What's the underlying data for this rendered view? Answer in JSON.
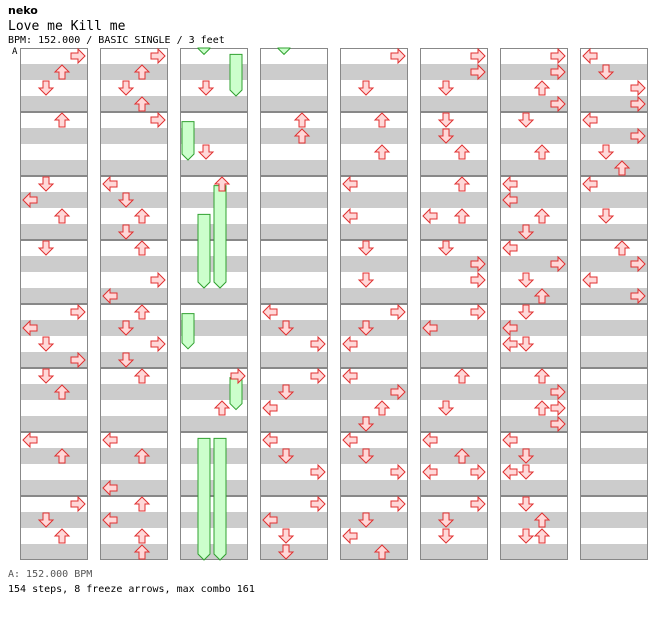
{
  "header": {
    "artist": "neko",
    "title": "Love me Kill me",
    "meta": "BPM: 152.000 / BASIC SINGLE / 3 feet",
    "bpm_marker": "A"
  },
  "footer": {
    "bpm_legend": "A: 152.000 BPM",
    "stats": "154 steps, 8 freeze arrows, max combo 161"
  },
  "colors": {
    "arrow_fill": "#ffd8d8",
    "arrow_stroke": "#e03030",
    "freeze_fill": "#ccffcc",
    "freeze_stroke": "#30a030",
    "stripe": "#cccccc",
    "border": "#888888"
  },
  "chart": {
    "columns": 8,
    "rows_per_column": 8,
    "slots_per_measure": 4,
    "lanes": [
      "left",
      "down",
      "up",
      "right"
    ],
    "measures": [
      [
        {
          "s": 0,
          "l": "right"
        },
        {
          "s": 1,
          "l": "up"
        },
        {
          "s": 2,
          "l": "down"
        }
      ],
      [
        {
          "s": 0,
          "l": "up"
        }
      ],
      [
        {
          "s": 0,
          "l": "down"
        },
        {
          "s": 1,
          "l": "left"
        },
        {
          "s": 2,
          "l": "up"
        }
      ],
      [
        {
          "s": 0,
          "l": "down"
        }
      ],
      [
        {
          "s": 0,
          "l": "right"
        },
        {
          "s": 1,
          "l": "left"
        },
        {
          "s": 2,
          "l": "down"
        },
        {
          "s": 3,
          "l": "right"
        }
      ],
      [
        {
          "s": 0,
          "l": "down"
        },
        {
          "s": 1,
          "l": "up"
        }
      ],
      [
        {
          "s": 0,
          "l": "left"
        },
        {
          "s": 1,
          "l": "up"
        }
      ],
      [
        {
          "s": 0,
          "l": "right"
        },
        {
          "s": 1,
          "l": "down"
        },
        {
          "s": 2,
          "l": "up"
        }
      ],
      [
        {
          "s": 0,
          "l": "right"
        },
        {
          "s": 1,
          "l": "up"
        },
        {
          "s": 2,
          "l": "down"
        },
        {
          "s": 3,
          "l": "up"
        }
      ],
      [
        {
          "s": 0,
          "l": "right"
        }
      ],
      [
        {
          "s": 0,
          "l": "left"
        },
        {
          "s": 1,
          "l": "down"
        },
        {
          "s": 2,
          "l": "up"
        },
        {
          "s": 3,
          "l": "down"
        }
      ],
      [
        {
          "s": 0,
          "l": "up"
        },
        {
          "s": 2,
          "l": "right"
        },
        {
          "s": 3,
          "l": "left"
        }
      ],
      [
        {
          "s": 0,
          "l": "up"
        },
        {
          "s": 1,
          "l": "down"
        },
        {
          "s": 2,
          "l": "right"
        },
        {
          "s": 3,
          "l": "down"
        }
      ],
      [
        {
          "s": 0,
          "l": "up"
        }
      ],
      [
        {
          "s": 0,
          "l": "left"
        },
        {
          "s": 1,
          "l": "up"
        },
        {
          "s": 3,
          "l": "left"
        }
      ],
      [
        {
          "s": 0,
          "l": "up"
        },
        {
          "s": 1,
          "l": "left"
        },
        {
          "s": 2,
          "l": "up"
        },
        {
          "s": 3,
          "l": "up"
        }
      ],
      [
        {
          "s": 2,
          "l": "down"
        }
      ],
      [
        {
          "s": 2,
          "l": "down"
        }
      ],
      [
        {
          "s": 0,
          "l": "up"
        }
      ],
      [],
      [],
      [
        {
          "s": 0,
          "l": "right"
        },
        {
          "s": 2,
          "l": "up"
        }
      ],
      [],
      [],
      [],
      [
        {
          "s": 0,
          "l": "up"
        },
        {
          "s": 1,
          "l": "up"
        }
      ],
      [],
      [],
      [
        {
          "s": 0,
          "l": "left"
        },
        {
          "s": 1,
          "l": "down"
        },
        {
          "s": 2,
          "l": "right"
        }
      ],
      [
        {
          "s": 0,
          "l": "right"
        },
        {
          "s": 1,
          "l": "down"
        },
        {
          "s": 2,
          "l": "left"
        }
      ],
      [
        {
          "s": 0,
          "l": "left"
        },
        {
          "s": 1,
          "l": "down"
        },
        {
          "s": 2,
          "l": "right"
        }
      ],
      [
        {
          "s": 0,
          "l": "right"
        },
        {
          "s": 1,
          "l": "left"
        },
        {
          "s": 2,
          "l": "down"
        },
        {
          "s": 3,
          "l": "down"
        }
      ],
      [
        {
          "s": 0,
          "l": "right"
        },
        {
          "s": 2,
          "l": "down"
        }
      ],
      [
        {
          "s": 0,
          "l": "up"
        },
        {
          "s": 2,
          "l": "up"
        }
      ],
      [
        {
          "s": 0,
          "l": "left"
        },
        {
          "s": 2,
          "l": "left"
        }
      ],
      [
        {
          "s": 0,
          "l": "down"
        },
        {
          "s": 2,
          "l": "down"
        }
      ],
      [
        {
          "s": 0,
          "l": "right"
        },
        {
          "s": 1,
          "l": "down"
        },
        {
          "s": 2,
          "l": "left"
        }
      ],
      [
        {
          "s": 0,
          "l": "left"
        },
        {
          "s": 1,
          "l": "right"
        },
        {
          "s": 2,
          "l": "up"
        },
        {
          "s": 3,
          "l": "down"
        }
      ],
      [
        {
          "s": 0,
          "l": "left"
        },
        {
          "s": 1,
          "l": "down"
        },
        {
          "s": 2,
          "l": "right"
        }
      ],
      [
        {
          "s": 0,
          "l": "right"
        },
        {
          "s": 1,
          "l": "down"
        },
        {
          "s": 2,
          "l": "left"
        },
        {
          "s": 3,
          "l": "up"
        }
      ],
      [
        {
          "s": 0,
          "l": "right"
        },
        {
          "s": 1,
          "l": "right"
        },
        {
          "s": 2,
          "l": "down"
        }
      ],
      [
        {
          "s": 0,
          "l": "down"
        },
        {
          "s": 1,
          "l": "down"
        },
        {
          "s": 2,
          "l": "up"
        }
      ],
      [
        {
          "s": 0,
          "l": "up"
        },
        {
          "s": 2,
          "l": "left"
        },
        {
          "s": 2,
          "l": "up"
        }
      ],
      [
        {
          "s": 0,
          "l": "down"
        },
        {
          "s": 1,
          "l": "right"
        },
        {
          "s": 2,
          "l": "right"
        }
      ],
      [
        {
          "s": 0,
          "l": "right"
        },
        {
          "s": 1,
          "l": "left"
        }
      ],
      [
        {
          "s": 0,
          "l": "up"
        },
        {
          "s": 2,
          "l": "down"
        }
      ],
      [
        {
          "s": 0,
          "l": "left"
        },
        {
          "s": 1,
          "l": "up"
        },
        {
          "s": 2,
          "l": "left"
        },
        {
          "s": 2,
          "l": "right"
        }
      ],
      [
        {
          "s": 0,
          "l": "right"
        },
        {
          "s": 1,
          "l": "down"
        },
        {
          "s": 2,
          "l": "down"
        }
      ],
      [
        {
          "s": 0,
          "l": "right"
        },
        {
          "s": 1,
          "l": "right"
        },
        {
          "s": 2,
          "l": "up"
        },
        {
          "s": 3,
          "l": "right"
        }
      ],
      [
        {
          "s": 0,
          "l": "down"
        },
        {
          "s": 2,
          "l": "up"
        }
      ],
      [
        {
          "s": 0,
          "l": "left"
        },
        {
          "s": 1,
          "l": "left"
        },
        {
          "s": 2,
          "l": "up"
        },
        {
          "s": 3,
          "l": "down"
        }
      ],
      [
        {
          "s": 0,
          "l": "left"
        },
        {
          "s": 1,
          "l": "right"
        },
        {
          "s": 2,
          "l": "down"
        },
        {
          "s": 3,
          "l": "up"
        }
      ],
      [
        {
          "s": 0,
          "l": "down"
        },
        {
          "s": 1,
          "l": "left"
        },
        {
          "s": 2,
          "l": "left"
        },
        {
          "s": 2,
          "l": "down"
        }
      ],
      [
        {
          "s": 0,
          "l": "up"
        },
        {
          "s": 1,
          "l": "right"
        },
        {
          "s": 2,
          "l": "up"
        },
        {
          "s": 2,
          "l": "right"
        },
        {
          "s": 3,
          "l": "right"
        }
      ],
      [
        {
          "s": 0,
          "l": "left"
        },
        {
          "s": 1,
          "l": "down"
        },
        {
          "s": 2,
          "l": "left"
        },
        {
          "s": 2,
          "l": "down"
        }
      ],
      [
        {
          "s": 0,
          "l": "down"
        },
        {
          "s": 1,
          "l": "up"
        },
        {
          "s": 2,
          "l": "down"
        },
        {
          "s": 2,
          "l": "up"
        }
      ],
      [
        {
          "s": 0,
          "l": "left"
        },
        {
          "s": 1,
          "l": "down"
        },
        {
          "s": 2,
          "l": "right"
        },
        {
          "s": 3,
          "l": "right"
        }
      ],
      [
        {
          "s": 0,
          "l": "left"
        },
        {
          "s": 1,
          "l": "right"
        },
        {
          "s": 2,
          "l": "down"
        },
        {
          "s": 3,
          "l": "up"
        }
      ],
      [
        {
          "s": 0,
          "l": "left"
        },
        {
          "s": 2,
          "l": "down"
        }
      ],
      [
        {
          "s": 0,
          "l": "up"
        },
        {
          "s": 1,
          "l": "right"
        },
        {
          "s": 2,
          "l": "left"
        },
        {
          "s": 3,
          "l": "right"
        }
      ],
      [],
      [],
      [],
      []
    ],
    "freezes": [
      {
        "col": 2,
        "lane": "down",
        "start": 0.0,
        "end": 0.1
      },
      {
        "col": 3,
        "lane": "down",
        "start": 0.0,
        "end": 0.1
      },
      {
        "col": 2,
        "lane": "right",
        "start": 0.1,
        "end": 0.75
      },
      {
        "col": 2,
        "lane": "left",
        "start": 1.15,
        "end": 1.75
      },
      {
        "col": 2,
        "lane": "down",
        "start": 2.6,
        "end": 3.75
      },
      {
        "col": 2,
        "lane": "up",
        "start": 2.15,
        "end": 3.75
      },
      {
        "col": 2,
        "lane": "left",
        "start": 4.15,
        "end": 4.7
      },
      {
        "col": 2,
        "lane": "right",
        "start": 5.15,
        "end": 5.65
      },
      {
        "col": 2,
        "lane": "down",
        "start": 6.1,
        "end": 8.0
      },
      {
        "col": 2,
        "lane": "up",
        "start": 6.1,
        "end": 8.0
      }
    ]
  }
}
